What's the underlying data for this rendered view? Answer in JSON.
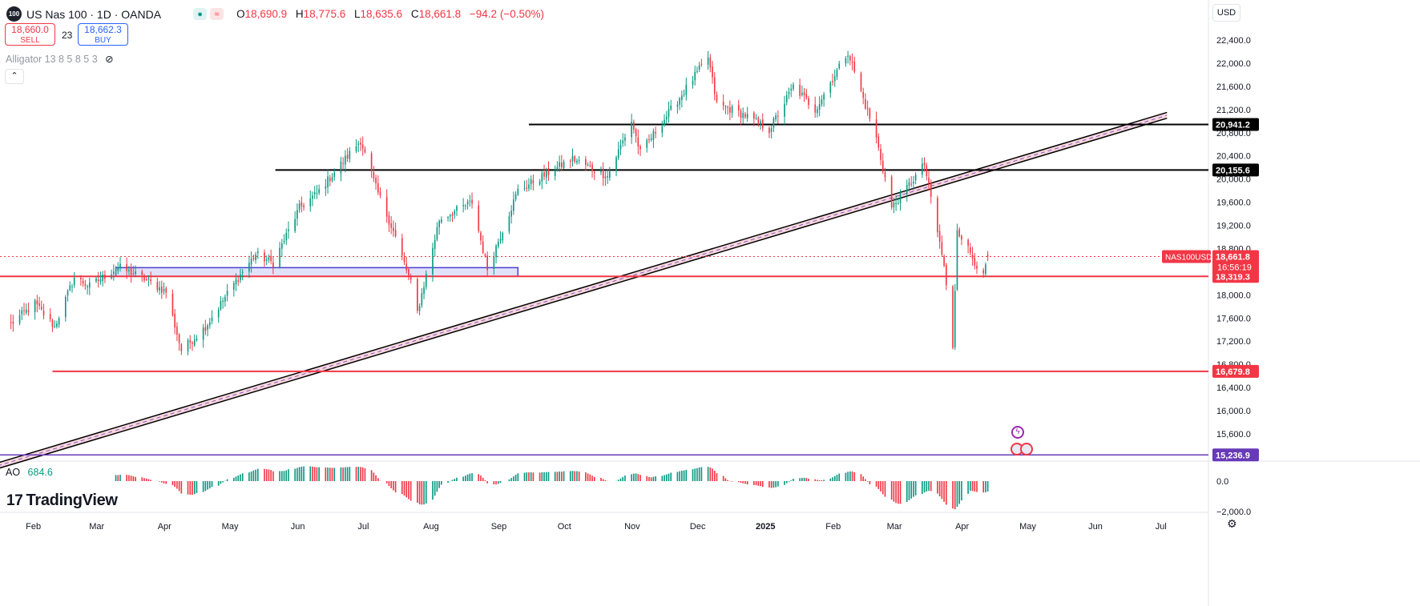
{
  "header": {
    "logo_text": "100",
    "title": "US Nas 100 · 1D · OANDA",
    "open_label": "O",
    "open": "18,690.9",
    "high_label": "H",
    "high": "18,775.6",
    "low_label": "L",
    "low": "18,635.6",
    "close_label": "C",
    "close": "18,661.8",
    "change": "−94.2 (−0.50%)",
    "pill_g": "●",
    "pill_r": "≈"
  },
  "trade": {
    "sell_price": "18,660.0",
    "sell_label": "SELL",
    "spread": "23",
    "buy_price": "18,662.3",
    "buy_label": "BUY"
  },
  "indicator": {
    "alligator_label": "Alligator 13 8 5 8 5 3",
    "collapse": "⌃"
  },
  "ao": {
    "label": "AO",
    "value": "684.6"
  },
  "brand": {
    "name": "TradingView",
    "mark": "17"
  },
  "currency": "USD",
  "settings_icon": "⚙",
  "colors": {
    "up": "#089981",
    "down": "#f23645",
    "hline_black": "#000000",
    "hline_red": "#f23645",
    "purple": "#673ab7",
    "channel_fill": "#f8d7dc"
  },
  "chart_data": {
    "type": "candlestick",
    "price_axis": {
      "range": [
        15290,
        22750
      ],
      "ticks": [
        "22,400.0",
        "22,000.0",
        "21,600.0",
        "21,200.0",
        "20,800.0",
        "20,400.0",
        "20,000.0",
        "19,600.0",
        "19,200.0",
        "18,800.0",
        "18,400.0",
        "18,000.0",
        "17,600.0",
        "17,200.0",
        "16,800.0",
        "16,400.0",
        "16,000.0",
        "15,600.0"
      ]
    },
    "ao_axis": {
      "ticks": [
        "0.0",
        "−2,000.0"
      ]
    },
    "x_labels": [
      "Feb",
      "Mar",
      "Apr",
      "May",
      "Jun",
      "Jul",
      "Aug",
      "Sep",
      "Oct",
      "Nov",
      "Dec",
      "2025",
      "Feb",
      "Mar",
      "Apr",
      "May",
      "Jun",
      "Jul"
    ],
    "anchors": [
      {
        "date": "2024-02-01",
        "close": 17500
      },
      {
        "date": "2024-02-12",
        "close": 17850
      },
      {
        "date": "2024-02-21",
        "close": 17450
      },
      {
        "date": "2024-03-01",
        "close": 18300
      },
      {
        "date": "2024-03-08",
        "close": 18150
      },
      {
        "date": "2024-03-21",
        "close": 18480
      },
      {
        "date": "2024-04-01",
        "close": 18300
      },
      {
        "date": "2024-04-12",
        "close": 18050
      },
      {
        "date": "2024-04-19",
        "close": 17040
      },
      {
        "date": "2024-04-30",
        "close": 17450
      },
      {
        "date": "2024-05-15",
        "close": 18300
      },
      {
        "date": "2024-05-23",
        "close": 18700
      },
      {
        "date": "2024-05-31",
        "close": 18550
      },
      {
        "date": "2024-06-12",
        "close": 19500
      },
      {
        "date": "2024-06-20",
        "close": 19750
      },
      {
        "date": "2024-07-10",
        "close": 20670
      },
      {
        "date": "2024-07-17",
        "close": 19850
      },
      {
        "date": "2024-07-25",
        "close": 19100
      },
      {
        "date": "2024-08-02",
        "close": 18200
      },
      {
        "date": "2024-08-05",
        "close": 17700
      },
      {
        "date": "2024-08-15",
        "close": 19300
      },
      {
        "date": "2024-08-30",
        "close": 19600
      },
      {
        "date": "2024-09-06",
        "close": 18450
      },
      {
        "date": "2024-09-20",
        "close": 19800
      },
      {
        "date": "2024-10-15",
        "close": 20350
      },
      {
        "date": "2024-10-31",
        "close": 20050
      },
      {
        "date": "2024-11-11",
        "close": 21000
      },
      {
        "date": "2024-11-15",
        "close": 20450
      },
      {
        "date": "2024-12-16",
        "close": 22100
      },
      {
        "date": "2024-12-20",
        "close": 21300
      },
      {
        "date": "2025-01-02",
        "close": 21100
      },
      {
        "date": "2025-01-13",
        "close": 20850
      },
      {
        "date": "2025-01-24",
        "close": 21600
      },
      {
        "date": "2025-02-03",
        "close": 21200
      },
      {
        "date": "2025-02-18",
        "close": 22200
      },
      {
        "date": "2025-03-03",
        "close": 20700
      },
      {
        "date": "2025-03-10",
        "close": 19500
      },
      {
        "date": "2025-03-25",
        "close": 20250
      },
      {
        "date": "2025-04-03",
        "close": 18500
      },
      {
        "date": "2025-04-07",
        "close": 17050
      },
      {
        "date": "2025-04-09",
        "close": 19150
      },
      {
        "date": "2025-04-21",
        "close": 18300
      },
      {
        "date": "2025-04-23",
        "close": 18661.8
      }
    ],
    "horizontal_levels": [
      {
        "price": 20941.2,
        "label": "20,941.2",
        "color": "#000000",
        "from": "2024-09-25"
      },
      {
        "price": 20155.6,
        "label": "20,155.6",
        "color": "#000000",
        "from": "2024-06-01"
      },
      {
        "price": 18319.3,
        "label": "18,319.3",
        "color": "#f23645",
        "from": "2024-01-26"
      },
      {
        "price": 16679.8,
        "label": "16,679.8",
        "color": "#f23645",
        "from": "2024-02-20"
      },
      {
        "price": 15236.9,
        "label": "15,236.9",
        "color": "#673ab7",
        "from": "2024-01-26"
      }
    ],
    "last_price": {
      "price": 18661.8,
      "label": "18,661.8",
      "symbol": "NAS100USD",
      "countdown": "16:56:19"
    },
    "support_zone": {
      "from": "2024-03-20",
      "to": "2024-09-20",
      "top": 18470,
      "bottom": 18320
    },
    "trend_channel": {
      "start_date": "2024-01-26",
      "start_price": 15100,
      "end_date": "2025-07-14",
      "end_price": 21150,
      "width_price": 100
    },
    "ao_series_note": "Awesome Oscillator histogram, derived from price"
  }
}
